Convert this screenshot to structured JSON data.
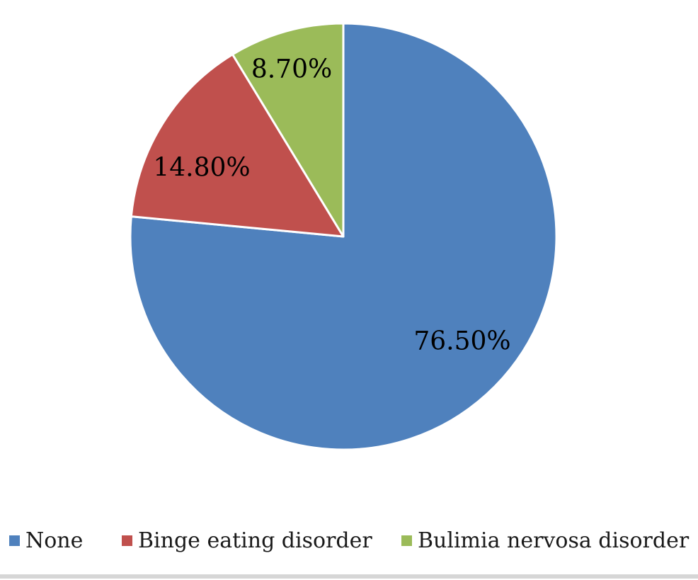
{
  "figure": {
    "background": "#ffffff",
    "bottom_border_color": "#d6d6d6"
  },
  "chart_data": {
    "type": "pie",
    "title": "",
    "categories": [
      "None",
      "Binge eating disorder",
      "Bulimia nervosa disorder"
    ],
    "values": [
      76.5,
      14.8,
      8.7
    ],
    "slice_labels": [
      "76.50%",
      "14.80%",
      "8.70%"
    ],
    "colors": [
      "#4F81BD",
      "#C0504D",
      "#9BBB59"
    ],
    "slice_border_color": "#FFFFFF",
    "label_color": "#000000",
    "start_angle": "12-oclock",
    "direction": "clockwise",
    "legend_position": "bottom",
    "grid": "off"
  }
}
